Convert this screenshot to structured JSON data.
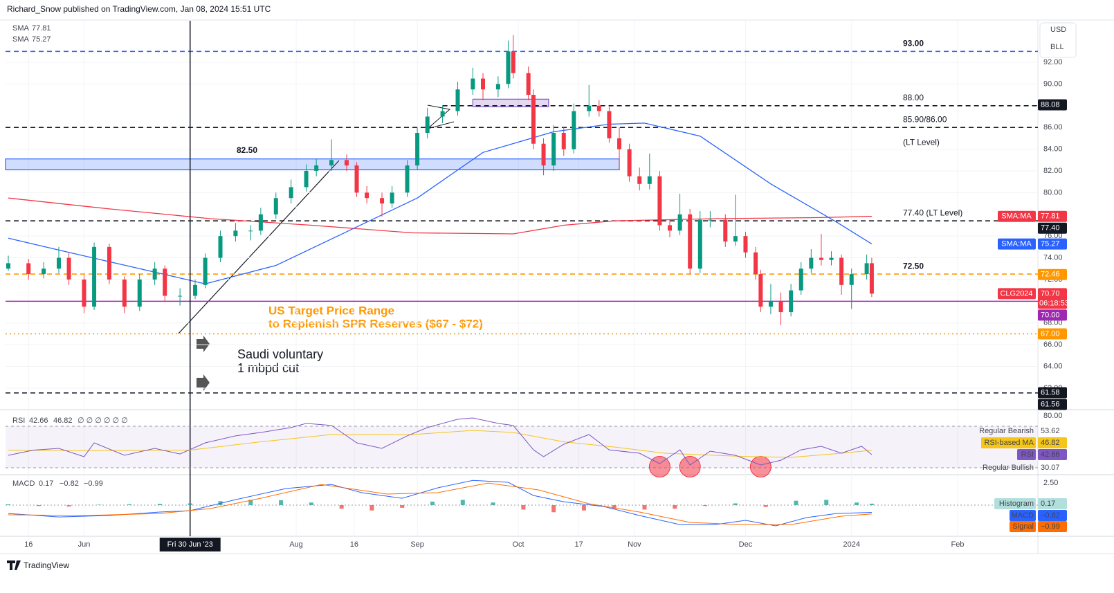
{
  "header": {
    "author_line": "Richard_Snow published on TradingView.com, Jan 08, 2024 15:51 UTC",
    "brand": "TradingView"
  },
  "annotations": {
    "spr": [
      "US Target Price Range",
      "to Replenish SPR Reserves ($67 - $72)"
    ],
    "saudi": [
      "Saudi voluntary",
      "1 mbpd cut"
    ]
  },
  "chart_data": {
    "type": "candlestick",
    "currency": "USD",
    "unit": "BLL",
    "symbol": "CLG2024",
    "last_price": {
      "value": 70.7,
      "label": "70.70"
    },
    "countdown": "06:18:53",
    "last_color": "#f23645",
    "up_color": "#089981",
    "down_color": "#f23645",
    "x": [
      0,
      4,
      7,
      10,
      12,
      15,
      17,
      20,
      23,
      26,
      29,
      31,
      34,
      37,
      39,
      42,
      45,
      48,
      50,
      53,
      56,
      59,
      61,
      64,
      67,
      69,
      71,
      74,
      76,
      79,
      81,
      83,
      86,
      89,
      92,
      94,
      97,
      99,
      100,
      103,
      104,
      106,
      108,
      110,
      112,
      115,
      117,
      119,
      121,
      123,
      125,
      127,
      129,
      131,
      133,
      135,
      137,
      139,
      142,
      144,
      146,
      148,
      149,
      151,
      153,
      155,
      157,
      159,
      161,
      163,
      165,
      167,
      170,
      171
    ],
    "open": [
      73.0,
      73.5,
      72.5,
      73.0,
      74.0,
      72.0,
      69.5,
      75.0,
      72.0,
      69.5,
      72.0,
      73.0,
      70.5,
      70.5,
      71.5,
      74.0,
      76.0,
      76.5,
      76.5,
      78.0,
      79.5,
      80.5,
      82.0,
      82.5,
      83.0,
      82.5,
      80.0,
      79.5,
      79.0,
      80.0,
      82.5,
      85.5,
      87.0,
      87.5,
      89.5,
      90.5,
      89.5,
      90.0,
      93.0,
      91.0,
      89.0,
      84.5,
      82.5,
      85.5,
      84.0,
      87.5,
      88.0,
      87.5,
      85.0,
      84.0,
      81.5,
      80.8,
      81.5,
      77.0,
      76.5,
      78.0,
      73.0,
      77.5,
      77.5,
      75.5,
      76.0,
      74.5,
      72.5,
      69.5,
      70.0,
      69.0,
      71.0,
      73.0,
      74.0,
      73.8,
      74.0,
      71.5,
      72.5,
      73.5
    ],
    "high": [
      74.2,
      73.9,
      73.6,
      75.0,
      74.5,
      72.4,
      75.4,
      75.3,
      72.3,
      72.5,
      73.6,
      73.3,
      71.2,
      72.0,
      74.4,
      76.5,
      77.2,
      77.0,
      78.6,
      80.0,
      81.2,
      82.6,
      83.1,
      84.9,
      83.5,
      82.8,
      80.6,
      80.0,
      80.6,
      83.0,
      86.0,
      87.8,
      88.0,
      90.2,
      91.5,
      91.0,
      90.7,
      94.0,
      94.5,
      91.6,
      89.5,
      85.0,
      86.2,
      86.0,
      88.2,
      89.9,
      88.5,
      87.9,
      86.0,
      84.5,
      82.3,
      83.6,
      82.0,
      77.5,
      79.9,
      78.5,
      78.3,
      78.3,
      78.0,
      79.8,
      76.4,
      75.0,
      72.9,
      71.6,
      70.8,
      71.6,
      73.6,
      74.8,
      76.2,
      74.6,
      74.3,
      73.0,
      74.3,
      74.0
    ],
    "low": [
      72.8,
      72.0,
      72.1,
      72.6,
      71.5,
      68.9,
      69.2,
      71.6,
      68.9,
      69.1,
      71.5,
      70.0,
      69.6,
      70.2,
      71.2,
      73.6,
      75.5,
      75.6,
      76.1,
      77.6,
      79.0,
      80.1,
      81.5,
      82.0,
      82.0,
      79.6,
      79.0,
      77.8,
      78.6,
      79.6,
      82.1,
      85.0,
      86.4,
      87.1,
      89.0,
      88.5,
      88.8,
      89.6,
      90.5,
      88.5,
      84.0,
      81.6,
      82.0,
      83.4,
      83.6,
      87.0,
      87.0,
      84.6,
      82.3,
      81.0,
      80.2,
      80.3,
      76.5,
      75.9,
      76.1,
      72.5,
      72.6,
      76.8,
      75.0,
      75.1,
      74.0,
      72.0,
      69.0,
      68.8,
      67.8,
      68.6,
      70.6,
      72.6,
      73.3,
      73.3,
      70.6,
      69.3,
      72.0,
      70.4
    ],
    "close": [
      73.5,
      72.5,
      73.0,
      74.0,
      72.0,
      69.5,
      75.0,
      72.0,
      69.5,
      72.0,
      73.0,
      70.5,
      70.5,
      71.5,
      74.0,
      76.0,
      76.5,
      76.5,
      78.0,
      79.5,
      80.5,
      82.0,
      82.5,
      83.0,
      82.5,
      80.0,
      79.5,
      79.0,
      80.0,
      82.5,
      85.5,
      87.0,
      87.5,
      89.5,
      90.5,
      89.5,
      90.0,
      93.0,
      91.0,
      89.0,
      84.5,
      82.5,
      85.5,
      84.0,
      87.5,
      88.0,
      87.5,
      85.0,
      84.0,
      81.5,
      80.8,
      81.5,
      77.0,
      76.5,
      78.0,
      73.0,
      77.5,
      77.5,
      75.5,
      76.0,
      74.5,
      72.5,
      69.5,
      70.0,
      69.0,
      71.0,
      73.0,
      74.0,
      73.8,
      74.0,
      71.5,
      72.5,
      73.5,
      70.7
    ],
    "xlim": [
      -0.55,
      203.9
    ],
    "xticks": [
      {
        "value": 4,
        "label": "16"
      },
      {
        "value": 15,
        "label": "Jun"
      },
      {
        "value": 57,
        "label": "Aug"
      },
      {
        "value": 68.5,
        "label": "16"
      },
      {
        "value": 81,
        "label": "Sep"
      },
      {
        "value": 101,
        "label": "Oct"
      },
      {
        "value": 113,
        "label": "17"
      },
      {
        "value": 124,
        "label": "Nov"
      },
      {
        "value": 146,
        "label": "Dec"
      },
      {
        "value": 167,
        "label": "2024"
      },
      {
        "value": 188,
        "label": "Feb"
      }
    ],
    "crosshair": {
      "value": 36,
      "label": "Fri 30 Jun '23"
    },
    "ylim": [
      60.15,
      95.82
    ],
    "yticks": [
      {
        "value": 92,
        "label": "92.00"
      },
      {
        "value": 90,
        "label": "90.00"
      },
      {
        "value": 86,
        "label": "86.00"
      },
      {
        "value": 84,
        "label": "84.00"
      },
      {
        "value": 82,
        "label": "82.00"
      },
      {
        "value": 80,
        "label": "80.00"
      },
      {
        "value": 76,
        "label": "76.00"
      },
      {
        "value": 74,
        "label": "74.00"
      },
      {
        "value": 72,
        "label": "72.00"
      },
      {
        "value": 68,
        "label": "68.00"
      },
      {
        "value": 66,
        "label": "66.00"
      },
      {
        "value": 64,
        "label": "64.00"
      },
      {
        "value": 62,
        "label": "62.00"
      }
    ],
    "grid": true,
    "indicators": [
      {
        "name": "SMA",
        "tag_name": "SMA:MA",
        "last": 77.81,
        "color": "#f23645",
        "x": [
          0,
          20,
          40,
          60,
          80,
          100,
          110,
          120,
          140,
          160,
          171
        ],
        "values": [
          79.5,
          78.5,
          77.6,
          77.0,
          76.3,
          76.2,
          77.0,
          77.4,
          77.6,
          77.7,
          77.81
        ]
      },
      {
        "name": "SMA",
        "tag_name": "SMA:MA",
        "last": 75.27,
        "color": "#2962ff",
        "x": [
          0,
          12,
          26,
          39,
          53,
          67,
          81,
          94,
          108,
          119,
          126,
          137,
          151,
          164,
          171
        ],
        "values": [
          75.8,
          74.5,
          73.0,
          71.6,
          73.3,
          76.4,
          79.5,
          83.7,
          85.6,
          86.3,
          86.4,
          85.2,
          80.8,
          77.3,
          75.27
        ]
      }
    ],
    "levels": [
      {
        "value": 93,
        "label": "93.00",
        "color": "#2962ff",
        "style": "dashed",
        "from": -0.55
      },
      {
        "value": 88,
        "label": "88.00",
        "color": "#131722",
        "style": "dashed",
        "from": 86
      },
      {
        "value": 86,
        "label": "85.90/86.00",
        "sublabel": "(LT Level)",
        "color": "#131722",
        "style": "dashed",
        "from": -0.55
      },
      {
        "value": 77.4,
        "label": "77.40 (LT Level)",
        "color": "#131722",
        "style": "dashed",
        "from": -0.55
      },
      {
        "value": 72.5,
        "label": "72.50",
        "color": "#ff9800",
        "style": "dashed",
        "from": -0.55
      },
      {
        "value": 70,
        "color": "#9c27b0",
        "style": "solid",
        "from": -0.55
      },
      {
        "value": 67,
        "color": "#ff9800",
        "style": "dotted",
        "from": -0.55
      },
      {
        "value": 61.56,
        "color": "#131722",
        "style": "dashed",
        "from": -0.55
      }
    ],
    "zones": [
      {
        "low": 82.1,
        "high": 83.1,
        "from": -0.55,
        "to": 121,
        "label": "82.50",
        "color": "#2962ff"
      },
      {
        "low": 87.9,
        "high": 88.6,
        "from": 92,
        "to": 107,
        "color": "#7e57c2"
      }
    ],
    "price_tags": [
      {
        "price": 88.08,
        "color": "#131722"
      },
      {
        "price": {
          "value": 77.4,
          "label": "77.40"
        },
        "color": "#131722"
      },
      {
        "price": 72.46,
        "color": "#ff9800"
      },
      {
        "price": {
          "value": 70,
          "label": "70.00"
        },
        "color": "#9c27b0"
      },
      {
        "price": {
          "value": 67,
          "label": "67.00"
        },
        "color": "#ff9800"
      },
      {
        "price": 61.58,
        "color": "#131722"
      },
      {
        "price": 61.56,
        "color": "#131722"
      }
    ],
    "rsi": {
      "name": "RSI",
      "last": 42.66,
      "color": "#7e57c2",
      "ma_name": "RSI-based MA",
      "ma_last": 46.82,
      "ma_color": "#f5c518",
      "inputs": "∅ ∅ ∅ ∅ ∅ ∅",
      "divergences": [
        {
          "name": "Regular Bearish",
          "value": 53.62
        },
        {
          "name": "Regular Bullish",
          "value": 30.07
        }
      ],
      "ylim": [
        24.7,
        85.3
      ],
      "yticks": [
        {
          "value": 80,
          "label": "80.00"
        }
      ],
      "band": [
        30,
        70
      ],
      "x": [
        0,
        5,
        10,
        15,
        17,
        23,
        29,
        34,
        39,
        45,
        50,
        56,
        59,
        64,
        69,
        74,
        79,
        83,
        89,
        92,
        97,
        100,
        104,
        106,
        110,
        115,
        119,
        125,
        129,
        133,
        135,
        139,
        144,
        149,
        153,
        157,
        161,
        165,
        169,
        171
      ],
      "values": [
        42,
        47,
        48.7,
        40.7,
        54,
        42,
        48.7,
        43.3,
        54,
        60.7,
        64,
        68.7,
        72.7,
        70.7,
        54,
        48.7,
        60.7,
        68.7,
        76.7,
        78,
        72.7,
        70.7,
        47.3,
        40.7,
        52.7,
        62,
        47.3,
        44,
        34,
        47.3,
        32.7,
        46,
        42,
        32.7,
        37.3,
        47.3,
        50.7,
        44,
        50.7,
        42.66
      ],
      "ma_x": [
        0,
        17,
        36,
        50,
        64,
        80,
        92,
        100,
        110,
        120,
        130,
        145,
        155,
        165,
        171
      ],
      "ma_values": [
        47,
        46.5,
        47,
        55,
        62,
        62,
        66,
        64,
        55,
        50,
        44,
        41,
        40,
        44,
        46.82
      ],
      "bullish_markers": {
        "x": [
          129,
          135,
          149
        ],
        "values": [
          31,
          31,
          31
        ]
      }
    },
    "macd": {
      "name": "MACD",
      "hist_name": "Histogram",
      "signal_name": "Signal",
      "hist_last": 0.17,
      "macd_last": {
        "value": -0.82,
        "label": "−0.82"
      },
      "signal_last": {
        "value": -0.99,
        "label": "−0.99"
      },
      "hist_color": "#26a69a",
      "hist_neg_color": "#ef5350",
      "macd_color": "#2962ff",
      "signal_color": "#ff6d00",
      "ylim": [
        -3.28,
        3.13
      ],
      "yticks": [
        {
          "value": 2.5,
          "label": "2.50"
        }
      ],
      "x": [
        0,
        10,
        20,
        30,
        36,
        45,
        55,
        64,
        70,
        78,
        85,
        92,
        99,
        104,
        110,
        118,
        125,
        133,
        140,
        146,
        152,
        158,
        164,
        171
      ],
      "values": [
        -0.94,
        -1.33,
        -1.17,
        -0.78,
        -0.62,
        0.62,
        1.88,
        2.34,
        1.41,
        0.78,
        1.95,
        2.8,
        2.58,
        1.09,
        0.39,
        -0.16,
        -1.17,
        -2.19,
        -2.19,
        -1.72,
        -2.34,
        -1.41,
        -0.94,
        -0.82
      ],
      "signal_x": [
        0,
        15,
        30,
        40,
        50,
        62,
        75,
        85,
        95,
        105,
        115,
        125,
        135,
        145,
        155,
        165,
        171
      ],
      "signal_values": [
        -1.09,
        -1.17,
        -0.94,
        -0.39,
        0.78,
        2.34,
        1.25,
        1.41,
        2.5,
        1.72,
        0.16,
        -0.78,
        -1.95,
        -2.19,
        -2.19,
        -1.25,
        -0.99
      ],
      "hist_x": [
        0,
        6,
        12,
        18,
        24,
        30,
        36,
        42,
        48,
        54,
        60,
        66,
        72,
        78,
        84,
        90,
        96,
        102,
        108,
        114,
        120,
        126,
        132,
        138,
        144,
        150,
        156,
        162,
        168,
        171
      ],
      "hist_values": [
        0.1,
        -0.1,
        -0.15,
        0.05,
        0.1,
        0.15,
        0.2,
        0.45,
        0.6,
        0.55,
        0.3,
        -0.4,
        -0.6,
        -0.3,
        0.4,
        0.6,
        0.3,
        -0.5,
        -0.8,
        -0.6,
        -0.4,
        -0.5,
        -0.4,
        -0.1,
        0.2,
        -0.2,
        0.5,
        0.6,
        0.3,
        0.17
      ]
    }
  }
}
